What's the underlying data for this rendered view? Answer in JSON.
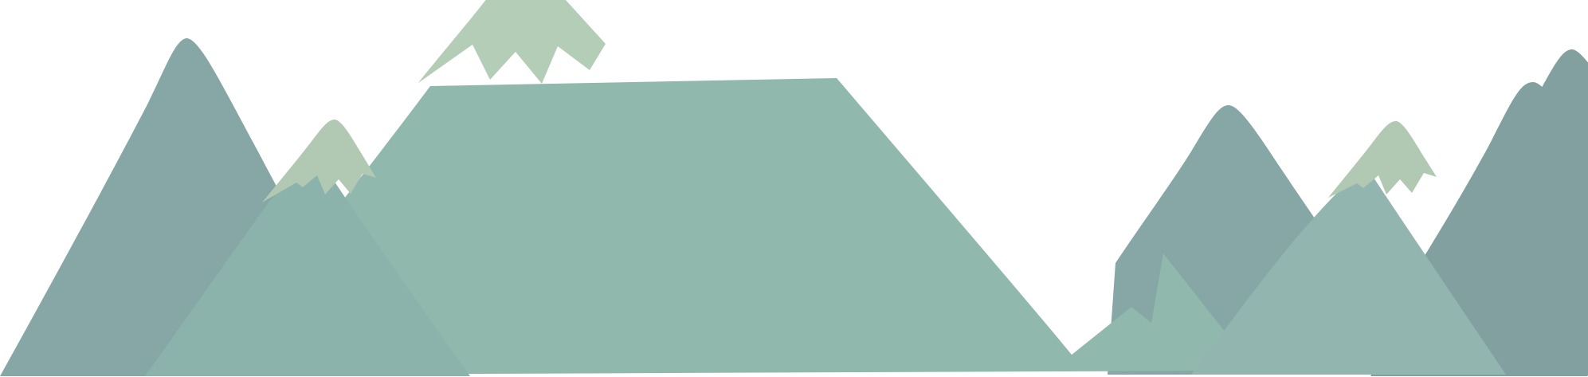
{
  "scene": {
    "subject": "mountain-range",
    "background_color": "#ffffff",
    "colors": {
      "far_mountain": "#86a7a5",
      "far_mountain_right": "#83a0a0",
      "mid_mountain": "#8cb3ab",
      "center_mountain": "#90b8ac",
      "right_mid_mountain": "#93b5af",
      "snow_cap": "#b4cdb7",
      "snow_cap_small": "#b1c8b3"
    }
  }
}
